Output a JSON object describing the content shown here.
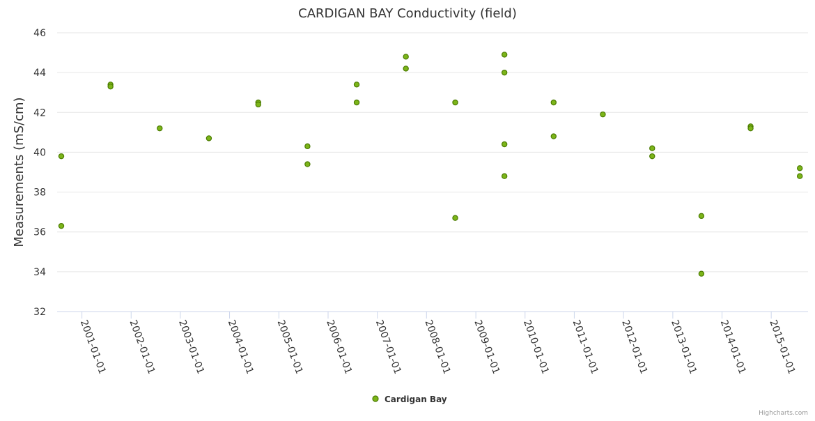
{
  "chart_data": {
    "type": "scatter",
    "title": "CARDIGAN BAY Conductivity (field)",
    "xlabel": "",
    "ylabel": "Measurements (mS/cm)",
    "ylim": [
      32,
      46
    ],
    "yticks": [
      "32",
      "34",
      "36",
      "38",
      "40",
      "42",
      "44",
      "46"
    ],
    "xlim": [
      "2000-07-01",
      "2015-10-01"
    ],
    "xticks": [
      "2001-01-01",
      "2002-01-01",
      "2003-01-01",
      "2004-01-01",
      "2005-01-01",
      "2006-01-01",
      "2007-01-01",
      "2008-01-01",
      "2009-01-01",
      "2010-01-01",
      "2011-01-01",
      "2012-01-01",
      "2013-01-01",
      "2014-01-01",
      "2015-01-01"
    ],
    "grid": true,
    "legend": "bottom-center",
    "series": [
      {
        "name": "Cardigan Bay",
        "color": "#7cb519",
        "points": [
          {
            "x": "2000-08-01",
            "y": 39.8
          },
          {
            "x": "2000-08-01",
            "y": 36.3
          },
          {
            "x": "2001-08-01",
            "y": 43.4
          },
          {
            "x": "2001-08-01",
            "y": 43.3
          },
          {
            "x": "2002-08-01",
            "y": 41.2
          },
          {
            "x": "2003-08-01",
            "y": 40.7
          },
          {
            "x": "2004-08-01",
            "y": 42.5
          },
          {
            "x": "2004-08-01",
            "y": 42.4
          },
          {
            "x": "2005-08-01",
            "y": 40.3
          },
          {
            "x": "2005-08-01",
            "y": 39.4
          },
          {
            "x": "2006-08-01",
            "y": 43.4
          },
          {
            "x": "2006-08-01",
            "y": 42.5
          },
          {
            "x": "2007-08-01",
            "y": 44.8
          },
          {
            "x": "2007-08-01",
            "y": 44.2
          },
          {
            "x": "2008-08-01",
            "y": 42.5
          },
          {
            "x": "2008-08-01",
            "y": 36.7
          },
          {
            "x": "2009-08-01",
            "y": 44.9
          },
          {
            "x": "2009-08-01",
            "y": 44.0
          },
          {
            "x": "2009-08-01",
            "y": 40.4
          },
          {
            "x": "2009-08-01",
            "y": 38.8
          },
          {
            "x": "2010-08-01",
            "y": 42.5
          },
          {
            "x": "2010-08-01",
            "y": 40.8
          },
          {
            "x": "2011-08-01",
            "y": 41.9
          },
          {
            "x": "2012-08-01",
            "y": 40.2
          },
          {
            "x": "2012-08-01",
            "y": 39.8
          },
          {
            "x": "2013-08-01",
            "y": 36.8
          },
          {
            "x": "2013-08-01",
            "y": 33.9
          },
          {
            "x": "2014-08-01",
            "y": 41.3
          },
          {
            "x": "2014-08-01",
            "y": 41.2
          },
          {
            "x": "2015-08-01",
            "y": 39.2
          },
          {
            "x": "2015-08-01",
            "y": 38.8
          }
        ]
      }
    ]
  },
  "credits": "Highcharts.com"
}
